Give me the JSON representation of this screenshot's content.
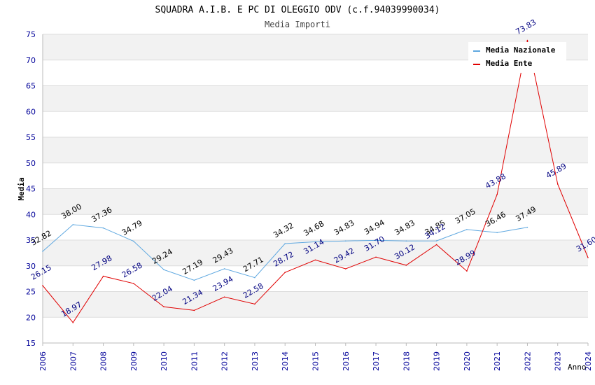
{
  "chart_data": {
    "type": "line",
    "title": "SQUADRA A.I.B. E PC DI OLEGGIO ODV (c.f.94039990034)",
    "subtitle": "Media Importi",
    "xlabel": "Anno",
    "ylabel": "Media",
    "ylim": [
      15,
      75
    ],
    "yticks": [
      "15",
      "20",
      "25",
      "30",
      "35",
      "40",
      "45",
      "50",
      "55",
      "60",
      "65",
      "70",
      "75"
    ],
    "x": [
      "2006",
      "2007",
      "2008",
      "2009",
      "2010",
      "2011",
      "2012",
      "2013",
      "2014",
      "2015",
      "2016",
      "2017",
      "2018",
      "2019",
      "2020",
      "2021",
      "2022",
      "2023",
      "2024"
    ],
    "grid": true,
    "legend_position": "top-right",
    "series": [
      {
        "name": "Media Nazionale",
        "color": "#5fa8e0",
        "label_color": "#000000",
        "values": [
          32.82,
          38.0,
          37.36,
          34.79,
          29.24,
          27.19,
          29.43,
          27.71,
          34.32,
          34.68,
          34.83,
          34.94,
          34.83,
          34.85,
          37.05,
          36.46,
          37.49,
          null,
          null
        ],
        "labels": [
          "32.82",
          "38.00",
          "37.36",
          "34.79",
          "29.24",
          "27.19",
          "29.43",
          "27.71",
          "34.32",
          "34.68",
          "34.83",
          "34.94",
          "34.83",
          "34.85",
          "37.05",
          "36.46",
          "37.49",
          "",
          ""
        ]
      },
      {
        "name": "Media Ente",
        "color": "#e00000",
        "label_color": "#000080",
        "values": [
          26.15,
          18.97,
          27.98,
          26.58,
          22.04,
          21.34,
          23.94,
          22.58,
          28.72,
          31.14,
          29.42,
          31.7,
          30.12,
          34.12,
          28.99,
          43.88,
          73.83,
          45.89,
          31.6
        ],
        "labels": [
          "26.15",
          "18.97",
          "27.98",
          "26.58",
          "22.04",
          "21.34",
          "23.94",
          "22.58",
          "28.72",
          "31.14",
          "29.42",
          "31.70",
          "30.12",
          "34.12",
          "28.99",
          "43.88",
          "73.83",
          "45.89",
          "31.60"
        ]
      }
    ]
  }
}
